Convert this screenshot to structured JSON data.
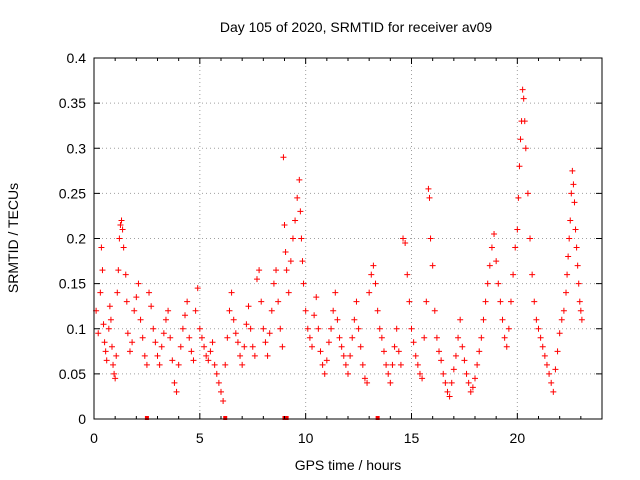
{
  "chart_data": {
    "type": "scatter",
    "title": "Day 105 of 2020, SRMTID for receiver av09",
    "xlabel": "GPS time / hours",
    "ylabel": "SRMTID / TECUs",
    "xlim": [
      0,
      24
    ],
    "ylim": [
      0,
      0.4
    ],
    "x_ticks": [
      0,
      5,
      10,
      15,
      20
    ],
    "x_tick_labels": [
      "0",
      "5",
      "10",
      "15",
      "20"
    ],
    "y_ticks": [
      0,
      0.05,
      0.1,
      0.15,
      0.2,
      0.25,
      0.3,
      0.35,
      0.4
    ],
    "y_tick_labels": [
      "0",
      "0.05",
      "0.1",
      "0.15",
      "0.2",
      "0.25",
      "0.3",
      "0.35",
      "0.4"
    ],
    "grid": true,
    "marker": "+",
    "color": "#ff0000",
    "series": [
      {
        "name": "SRMTID",
        "points": [
          [
            0.1,
            0.12
          ],
          [
            0.2,
            0.095
          ],
          [
            0.3,
            0.14
          ],
          [
            0.35,
            0.19
          ],
          [
            0.4,
            0.165
          ],
          [
            0.45,
            0.105
          ],
          [
            0.5,
            0.085
          ],
          [
            0.55,
            0.075
          ],
          [
            0.6,
            0.065
          ],
          [
            0.7,
            0.1
          ],
          [
            0.75,
            0.125
          ],
          [
            0.8,
            0.11
          ],
          [
            0.85,
            0.08
          ],
          [
            0.9,
            0.06
          ],
          [
            0.95,
            0.05
          ],
          [
            1.0,
            0.045
          ],
          [
            1.05,
            0.07
          ],
          [
            1.1,
            0.14
          ],
          [
            1.15,
            0.165
          ],
          [
            1.2,
            0.2
          ],
          [
            1.25,
            0.215
          ],
          [
            1.3,
            0.22
          ],
          [
            1.35,
            0.21
          ],
          [
            1.4,
            0.19
          ],
          [
            1.5,
            0.16
          ],
          [
            1.55,
            0.13
          ],
          [
            1.6,
            0.095
          ],
          [
            1.7,
            0.075
          ],
          [
            1.8,
            0.085
          ],
          [
            1.9,
            0.12
          ],
          [
            2.0,
            0.135
          ],
          [
            2.1,
            0.15
          ],
          [
            2.2,
            0.11
          ],
          [
            2.3,
            0.09
          ],
          [
            2.4,
            0.07
          ],
          [
            2.5,
            0.06
          ],
          [
            2.6,
            0.14
          ],
          [
            2.7,
            0.125
          ],
          [
            2.8,
            0.1
          ],
          [
            2.9,
            0.085
          ],
          [
            3.0,
            0.07
          ],
          [
            3.1,
            0.06
          ],
          [
            3.2,
            0.08
          ],
          [
            3.3,
            0.095
          ],
          [
            3.4,
            0.11
          ],
          [
            3.5,
            0.12
          ],
          [
            3.6,
            0.09
          ],
          [
            3.7,
            0.065
          ],
          [
            3.8,
            0.04
          ],
          [
            3.9,
            0.03
          ],
          [
            4.0,
            0.06
          ],
          [
            4.1,
            0.08
          ],
          [
            4.2,
            0.1
          ],
          [
            4.3,
            0.115
          ],
          [
            4.4,
            0.13
          ],
          [
            4.5,
            0.09
          ],
          [
            4.6,
            0.075
          ],
          [
            4.7,
            0.065
          ],
          [
            4.8,
            0.12
          ],
          [
            4.9,
            0.145
          ],
          [
            5.0,
            0.1
          ],
          [
            5.1,
            0.09
          ],
          [
            5.2,
            0.08
          ],
          [
            5.3,
            0.07
          ],
          [
            5.4,
            0.065
          ],
          [
            5.5,
            0.075
          ],
          [
            5.6,
            0.085
          ],
          [
            5.7,
            0.06
          ],
          [
            5.8,
            0.05
          ],
          [
            5.9,
            0.04
          ],
          [
            6.0,
            0.03
          ],
          [
            6.1,
            0.02
          ],
          [
            6.2,
            0.06
          ],
          [
            6.3,
            0.09
          ],
          [
            6.4,
            0.12
          ],
          [
            6.5,
            0.14
          ],
          [
            6.6,
            0.11
          ],
          [
            6.7,
            0.095
          ],
          [
            6.8,
            0.085
          ],
          [
            6.9,
            0.07
          ],
          [
            7.0,
            0.06
          ],
          [
            7.1,
            0.08
          ],
          [
            7.2,
            0.105
          ],
          [
            7.3,
            0.125
          ],
          [
            7.4,
            0.1
          ],
          [
            7.5,
            0.08
          ],
          [
            7.6,
            0.07
          ],
          [
            7.7,
            0.155
          ],
          [
            7.8,
            0.165
          ],
          [
            7.9,
            0.13
          ],
          [
            8.0,
            0.1
          ],
          [
            8.1,
            0.085
          ],
          [
            8.2,
            0.07
          ],
          [
            8.3,
            0.095
          ],
          [
            8.4,
            0.12
          ],
          [
            8.5,
            0.15
          ],
          [
            8.6,
            0.165
          ],
          [
            8.7,
            0.13
          ],
          [
            8.8,
            0.1
          ],
          [
            8.9,
            0.08
          ],
          [
            8.95,
            0.29
          ],
          [
            9.0,
            0.215
          ],
          [
            9.05,
            0.185
          ],
          [
            9.1,
            0.165
          ],
          [
            9.2,
            0.14
          ],
          [
            9.3,
            0.175
          ],
          [
            9.4,
            0.2
          ],
          [
            9.5,
            0.22
          ],
          [
            9.6,
            0.245
          ],
          [
            9.7,
            0.265
          ],
          [
            9.75,
            0.23
          ],
          [
            9.8,
            0.2
          ],
          [
            9.85,
            0.175
          ],
          [
            9.9,
            0.15
          ],
          [
            10.0,
            0.12
          ],
          [
            10.1,
            0.1
          ],
          [
            10.2,
            0.09
          ],
          [
            10.3,
            0.08
          ],
          [
            10.4,
            0.115
          ],
          [
            10.5,
            0.135
          ],
          [
            10.6,
            0.1
          ],
          [
            10.7,
            0.075
          ],
          [
            10.8,
            0.06
          ],
          [
            10.9,
            0.05
          ],
          [
            11.0,
            0.065
          ],
          [
            11.1,
            0.085
          ],
          [
            11.2,
            0.1
          ],
          [
            11.3,
            0.12
          ],
          [
            11.4,
            0.14
          ],
          [
            11.5,
            0.11
          ],
          [
            11.6,
            0.09
          ],
          [
            11.7,
            0.08
          ],
          [
            11.8,
            0.07
          ],
          [
            11.9,
            0.06
          ],
          [
            12.0,
            0.05
          ],
          [
            12.1,
            0.07
          ],
          [
            12.2,
            0.09
          ],
          [
            12.3,
            0.11
          ],
          [
            12.4,
            0.13
          ],
          [
            12.5,
            0.1
          ],
          [
            12.6,
            0.08
          ],
          [
            12.7,
            0.06
          ],
          [
            12.8,
            0.045
          ],
          [
            12.9,
            0.04
          ],
          [
            13.0,
            0.14
          ],
          [
            13.1,
            0.16
          ],
          [
            13.2,
            0.17
          ],
          [
            13.3,
            0.15
          ],
          [
            13.4,
            0.12
          ],
          [
            13.5,
            0.1
          ],
          [
            13.6,
            0.09
          ],
          [
            13.7,
            0.075
          ],
          [
            13.8,
            0.06
          ],
          [
            13.9,
            0.05
          ],
          [
            14.0,
            0.04
          ],
          [
            14.1,
            0.06
          ],
          [
            14.2,
            0.08
          ],
          [
            14.3,
            0.1
          ],
          [
            14.4,
            0.075
          ],
          [
            14.5,
            0.06
          ],
          [
            14.6,
            0.2
          ],
          [
            14.7,
            0.195
          ],
          [
            14.8,
            0.16
          ],
          [
            14.9,
            0.13
          ],
          [
            15.0,
            0.1
          ],
          [
            15.1,
            0.085
          ],
          [
            15.2,
            0.07
          ],
          [
            15.3,
            0.06
          ],
          [
            15.4,
            0.05
          ],
          [
            15.5,
            0.045
          ],
          [
            15.6,
            0.09
          ],
          [
            15.7,
            0.13
          ],
          [
            15.8,
            0.255
          ],
          [
            15.85,
            0.245
          ],
          [
            15.9,
            0.2
          ],
          [
            16.0,
            0.17
          ],
          [
            16.1,
            0.12
          ],
          [
            16.2,
            0.09
          ],
          [
            16.3,
            0.075
          ],
          [
            16.4,
            0.065
          ],
          [
            16.5,
            0.05
          ],
          [
            16.6,
            0.04
          ],
          [
            16.7,
            0.03
          ],
          [
            16.8,
            0.025
          ],
          [
            16.9,
            0.04
          ],
          [
            17.0,
            0.055
          ],
          [
            17.1,
            0.07
          ],
          [
            17.2,
            0.09
          ],
          [
            17.3,
            0.11
          ],
          [
            17.4,
            0.08
          ],
          [
            17.5,
            0.065
          ],
          [
            17.6,
            0.05
          ],
          [
            17.7,
            0.04
          ],
          [
            17.8,
            0.03
          ],
          [
            17.9,
            0.035
          ],
          [
            18.0,
            0.045
          ],
          [
            18.1,
            0.06
          ],
          [
            18.2,
            0.075
          ],
          [
            18.3,
            0.09
          ],
          [
            18.4,
            0.11
          ],
          [
            18.5,
            0.13
          ],
          [
            18.6,
            0.15
          ],
          [
            18.7,
            0.17
          ],
          [
            18.8,
            0.19
          ],
          [
            18.9,
            0.205
          ],
          [
            19.0,
            0.175
          ],
          [
            19.1,
            0.15
          ],
          [
            19.2,
            0.13
          ],
          [
            19.3,
            0.11
          ],
          [
            19.4,
            0.09
          ],
          [
            19.5,
            0.08
          ],
          [
            19.6,
            0.1
          ],
          [
            19.7,
            0.13
          ],
          [
            19.8,
            0.16
          ],
          [
            19.9,
            0.19
          ],
          [
            20.0,
            0.21
          ],
          [
            20.05,
            0.245
          ],
          [
            20.1,
            0.28
          ],
          [
            20.15,
            0.31
          ],
          [
            20.2,
            0.33
          ],
          [
            20.25,
            0.365
          ],
          [
            20.3,
            0.355
          ],
          [
            20.35,
            0.33
          ],
          [
            20.4,
            0.3
          ],
          [
            20.5,
            0.25
          ],
          [
            20.6,
            0.2
          ],
          [
            20.7,
            0.16
          ],
          [
            20.8,
            0.13
          ],
          [
            20.9,
            0.11
          ],
          [
            21.0,
            0.1
          ],
          [
            21.1,
            0.09
          ],
          [
            21.2,
            0.08
          ],
          [
            21.3,
            0.07
          ],
          [
            21.4,
            0.06
          ],
          [
            21.5,
            0.05
          ],
          [
            21.6,
            0.04
          ],
          [
            21.7,
            0.03
          ],
          [
            21.8,
            0.055
          ],
          [
            21.9,
            0.075
          ],
          [
            22.0,
            0.095
          ],
          [
            22.1,
            0.11
          ],
          [
            22.2,
            0.12
          ],
          [
            22.3,
            0.14
          ],
          [
            22.35,
            0.16
          ],
          [
            22.4,
            0.18
          ],
          [
            22.45,
            0.2
          ],
          [
            22.5,
            0.22
          ],
          [
            22.55,
            0.25
          ],
          [
            22.6,
            0.275
          ],
          [
            22.65,
            0.26
          ],
          [
            22.7,
            0.24
          ],
          [
            22.75,
            0.21
          ],
          [
            22.8,
            0.19
          ],
          [
            22.85,
            0.17
          ],
          [
            22.9,
            0.15
          ],
          [
            22.95,
            0.13
          ],
          [
            23.0,
            0.12
          ],
          [
            23.05,
            0.11
          ]
        ]
      }
    ],
    "gap_markers_x": [
      2.5,
      6.2,
      9.0,
      9.1,
      13.4
    ]
  }
}
